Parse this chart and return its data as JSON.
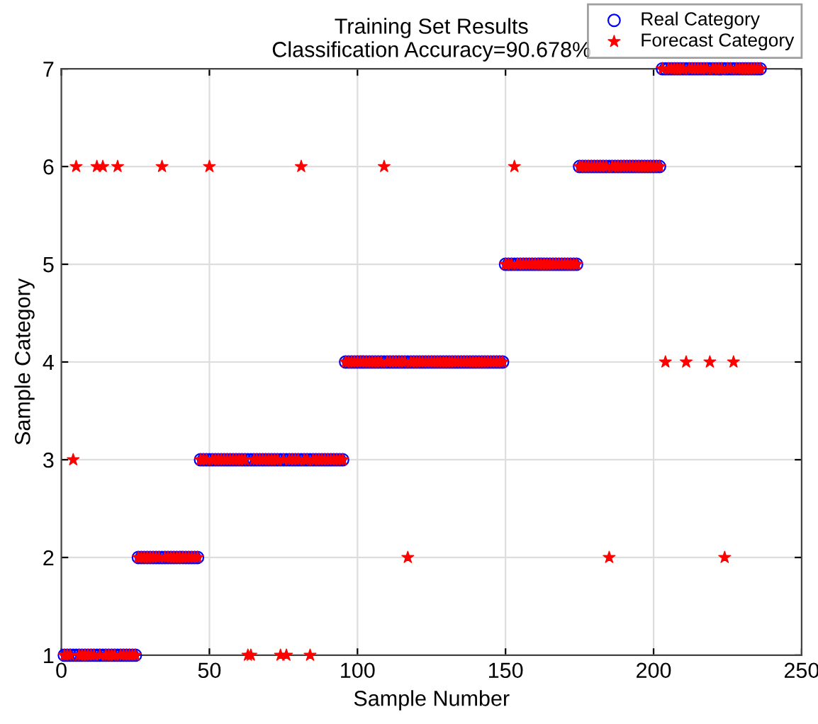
{
  "chart_data": {
    "type": "scatter",
    "title": "Training Set Results\nClassification Accuracy=90.678%",
    "xlabel": "Sample Number",
    "ylabel": "Sample Category",
    "x": [
      1,
      2,
      3,
      4,
      5,
      6,
      7,
      8,
      9,
      10,
      11,
      12,
      13,
      14,
      15,
      16,
      17,
      18,
      19,
      20,
      21,
      22,
      23,
      24,
      25,
      26,
      27,
      28,
      29,
      30,
      31,
      32,
      33,
      34,
      35,
      36,
      37,
      38,
      39,
      40,
      41,
      42,
      43,
      44,
      45,
      46,
      47,
      48,
      49,
      50,
      51,
      52,
      53,
      54,
      55,
      56,
      57,
      58,
      59,
      60,
      61,
      62,
      63,
      64,
      65,
      66,
      67,
      68,
      69,
      70,
      71,
      72,
      73,
      74,
      75,
      76,
      77,
      78,
      79,
      80,
      81,
      82,
      83,
      84,
      85,
      86,
      87,
      88,
      89,
      90,
      91,
      92,
      93,
      94,
      95,
      96,
      97,
      98,
      99,
      100,
      101,
      102,
      103,
      104,
      105,
      106,
      107,
      108,
      109,
      110,
      111,
      112,
      113,
      114,
      115,
      116,
      117,
      118,
      119,
      120,
      121,
      122,
      123,
      124,
      125,
      126,
      127,
      128,
      129,
      130,
      131,
      132,
      133,
      134,
      135,
      136,
      137,
      138,
      139,
      140,
      141,
      142,
      143,
      144,
      145,
      146,
      147,
      148,
      149,
      150,
      151,
      152,
      153,
      154,
      155,
      156,
      157,
      158,
      159,
      160,
      161,
      162,
      163,
      164,
      165,
      166,
      167,
      168,
      169,
      170,
      171,
      172,
      173,
      174,
      175,
      176,
      177,
      178,
      179,
      180,
      181,
      182,
      183,
      184,
      185,
      186,
      187,
      188,
      189,
      190,
      191,
      192,
      193,
      194,
      195,
      196,
      197,
      198,
      199,
      200,
      201,
      202,
      203,
      204,
      205,
      206,
      207,
      208,
      209,
      210,
      211,
      212,
      213,
      214,
      215,
      216,
      217,
      218,
      219,
      220,
      221,
      222,
      223,
      224,
      225,
      226,
      227,
      228,
      229,
      230,
      231,
      232,
      233,
      234,
      235,
      236
    ],
    "series": [
      {
        "name": "Real Category",
        "color": "#0000ff",
        "marker": "circle",
        "values": [
          1,
          1,
          1,
          1,
          1,
          1,
          1,
          1,
          1,
          1,
          1,
          1,
          1,
          1,
          1,
          1,
          1,
          1,
          1,
          1,
          1,
          1,
          1,
          1,
          1,
          2,
          2,
          2,
          2,
          2,
          2,
          2,
          2,
          2,
          2,
          2,
          2,
          2,
          2,
          2,
          2,
          2,
          2,
          2,
          2,
          2,
          3,
          3,
          3,
          3,
          3,
          3,
          3,
          3,
          3,
          3,
          3,
          3,
          3,
          3,
          3,
          3,
          3,
          3,
          3,
          3,
          3,
          3,
          3,
          3,
          3,
          3,
          3,
          3,
          3,
          3,
          3,
          3,
          3,
          3,
          3,
          3,
          3,
          3,
          3,
          3,
          3,
          3,
          3,
          3,
          3,
          3,
          3,
          3,
          3,
          4,
          4,
          4,
          4,
          4,
          4,
          4,
          4,
          4,
          4,
          4,
          4,
          4,
          4,
          4,
          4,
          4,
          4,
          4,
          4,
          4,
          4,
          4,
          4,
          4,
          4,
          4,
          4,
          4,
          4,
          4,
          4,
          4,
          4,
          4,
          4,
          4,
          4,
          4,
          4,
          4,
          4,
          4,
          4,
          4,
          4,
          4,
          4,
          4,
          4,
          4,
          4,
          4,
          4,
          5,
          5,
          5,
          5,
          5,
          5,
          5,
          5,
          5,
          5,
          5,
          5,
          5,
          5,
          5,
          5,
          5,
          5,
          5,
          5,
          5,
          5,
          5,
          5,
          5,
          6,
          6,
          6,
          6,
          6,
          6,
          6,
          6,
          6,
          6,
          6,
          6,
          6,
          6,
          6,
          6,
          6,
          6,
          6,
          6,
          6,
          6,
          6,
          6,
          6,
          6,
          6,
          6,
          7,
          7,
          7,
          7,
          7,
          7,
          7,
          7,
          7,
          7,
          7,
          7,
          7,
          7,
          7,
          7,
          7,
          7,
          7,
          7,
          7,
          7,
          7,
          7,
          7,
          7,
          7,
          7,
          7,
          7,
          7,
          7,
          7,
          7
        ]
      },
      {
        "name": "Forecast Category",
        "color": "#ff0000",
        "marker": "star",
        "values": [
          1,
          1,
          1,
          3,
          6,
          1,
          1,
          1,
          1,
          1,
          1,
          6,
          1,
          6,
          1,
          1,
          1,
          1,
          6,
          1,
          1,
          1,
          1,
          1,
          1,
          2,
          2,
          2,
          2,
          2,
          2,
          2,
          2,
          6,
          2,
          2,
          2,
          2,
          2,
          2,
          2,
          2,
          2,
          2,
          2,
          2,
          3,
          3,
          3,
          6,
          3,
          3,
          3,
          3,
          3,
          3,
          3,
          3,
          3,
          3,
          3,
          3,
          1,
          1,
          3,
          3,
          3,
          3,
          3,
          3,
          3,
          3,
          3,
          1,
          3,
          1,
          3,
          3,
          3,
          3,
          6,
          3,
          3,
          1,
          3,
          3,
          3,
          3,
          3,
          3,
          3,
          3,
          3,
          3,
          3,
          4,
          4,
          4,
          4,
          4,
          4,
          4,
          4,
          4,
          4,
          4,
          4,
          4,
          6,
          4,
          4,
          4,
          4,
          4,
          4,
          4,
          2,
          4,
          4,
          4,
          4,
          4,
          4,
          4,
          4,
          4,
          4,
          4,
          4,
          4,
          4,
          4,
          4,
          4,
          4,
          4,
          4,
          4,
          4,
          4,
          4,
          4,
          4,
          4,
          4,
          4,
          4,
          4,
          4,
          5,
          5,
          5,
          6,
          5,
          5,
          5,
          5,
          5,
          5,
          5,
          5,
          5,
          5,
          5,
          5,
          5,
          5,
          5,
          5,
          5,
          5,
          5,
          5,
          5,
          6,
          6,
          6,
          6,
          6,
          6,
          6,
          6,
          6,
          6,
          2,
          6,
          6,
          6,
          6,
          6,
          6,
          6,
          6,
          6,
          6,
          6,
          6,
          6,
          6,
          6,
          6,
          6,
          7,
          4,
          7,
          7,
          7,
          7,
          7,
          7,
          4,
          7,
          7,
          7,
          7,
          7,
          7,
          7,
          4,
          7,
          7,
          7,
          7,
          2,
          7,
          7,
          4,
          7,
          7,
          7,
          7,
          7,
          7,
          7,
          7,
          7
        ]
      }
    ],
    "xlim": [
      0,
      250
    ],
    "xticks": [
      0,
      50,
      100,
      150,
      200,
      250
    ],
    "ylim": [
      1,
      7
    ],
    "yticks": [
      1,
      2,
      3,
      4,
      5,
      6,
      7
    ],
    "grid": true,
    "legend": "top right"
  }
}
